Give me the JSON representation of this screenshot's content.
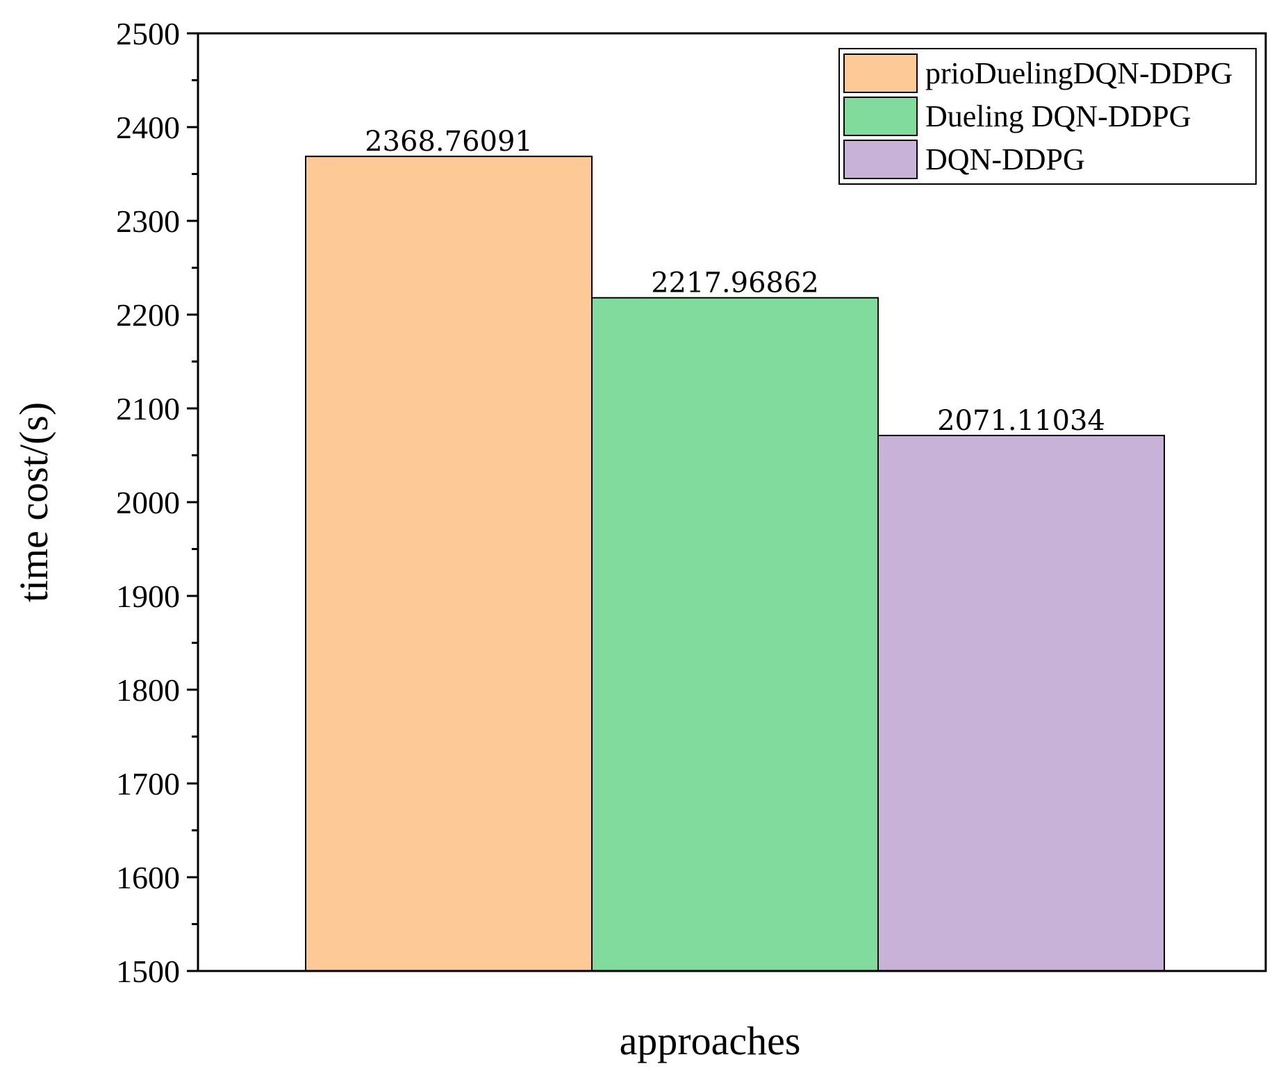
{
  "chart_data": {
    "type": "bar",
    "title": "",
    "xlabel": "approaches",
    "ylabel": "time cost/(s)",
    "ylim": [
      1500,
      2500
    ],
    "yticks": [
      1500,
      1600,
      1700,
      1800,
      1900,
      2000,
      2100,
      2200,
      2300,
      2400,
      2500
    ],
    "minor_ticks_per_interval": 2,
    "grid": false,
    "legend_position": "top-right",
    "series": [
      {
        "name": "prioDuelingDQN-DDPG",
        "value": 2368.76091,
        "label": "2368.76091",
        "color": "#fdc997"
      },
      {
        "name": "Dueling DQN-DDPG",
        "value": 2217.96862,
        "label": "2217.96862",
        "color": "#80db9c"
      },
      {
        "name": "DQN-DDPG",
        "value": 2071.11034,
        "label": "2071.11034",
        "color": "#c9b2d8"
      }
    ]
  }
}
